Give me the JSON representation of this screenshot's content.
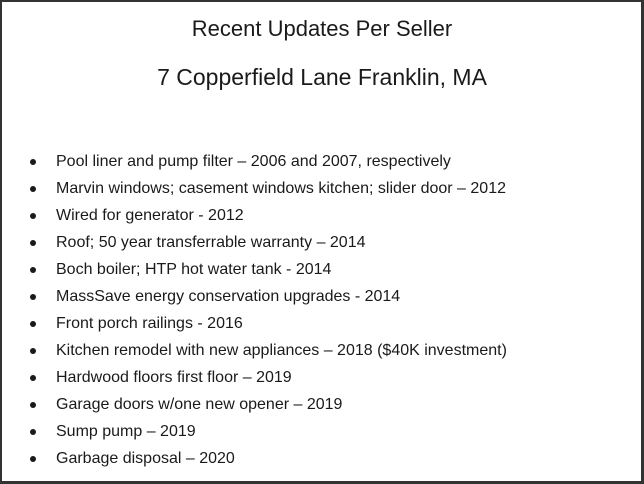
{
  "document": {
    "title": "Recent Updates Per Seller",
    "address": "7 Copperfield Lane Franklin, MA",
    "items": [
      "Pool liner and pump filter – 2006 and 2007, respectively",
      "Marvin windows; casement windows kitchen; slider door – 2012",
      "Wired for generator - 2012",
      "Roof; 50 year transferrable warranty – 2014",
      "Boch boiler; HTP hot water tank - 2014",
      "MassSave energy conservation upgrades - 2014",
      "Front porch railings - 2016",
      "Kitchen remodel with new appliances – 2018 ($40K investment)",
      "Hardwood floors first floor – 2019",
      "Garage doors w/one new opener – 2019",
      "Sump pump – 2019",
      "Garbage disposal – 2020"
    ]
  }
}
